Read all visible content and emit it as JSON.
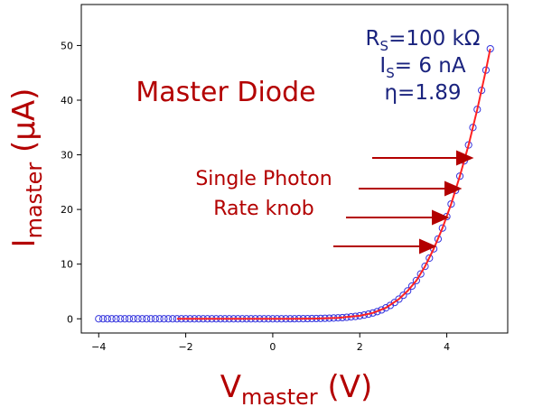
{
  "chart_data": {
    "type": "scatter",
    "xlabel": {
      "main": "V",
      "sub": "master",
      "unit": " (V)"
    },
    "ylabel": {
      "main": "I",
      "sub": "master",
      "unit": " (μA)"
    },
    "xlim": [
      -4.4,
      5.4
    ],
    "ylim": [
      -2.6,
      57.5
    ],
    "xticks": [
      -4,
      -2,
      0,
      2,
      4
    ],
    "yticks": [
      0,
      10,
      20,
      30,
      40,
      50
    ],
    "xtick_labels": [
      "−4",
      "−2",
      "0",
      "2",
      "4"
    ],
    "ytick_labels": [
      "0",
      "10",
      "20",
      "30",
      "40",
      "50"
    ],
    "grid": false,
    "legend": "none",
    "colors": {
      "markers": "#3333dd",
      "fit": "#ff2222",
      "annotation": "#b30000",
      "params": "#1a237e"
    },
    "series": [
      {
        "kind": "markers",
        "x": [
          -4.0,
          -3.9,
          -3.8,
          -3.7,
          -3.6,
          -3.5,
          -3.4,
          -3.3,
          -3.2,
          -3.1,
          -3.0,
          -2.9,
          -2.8,
          -2.7,
          -2.6,
          -2.5,
          -2.4,
          -2.3,
          -2.2,
          -2.1,
          -2.0,
          -1.9,
          -1.8,
          -1.7,
          -1.6,
          -1.5,
          -1.4,
          -1.3,
          -1.2,
          -1.1,
          -1.0,
          -0.9,
          -0.8,
          -0.7,
          -0.6,
          -0.5,
          -0.4,
          -0.3,
          -0.2,
          -0.1,
          0.0,
          0.1,
          0.2,
          0.3,
          0.4,
          0.5,
          0.6,
          0.7,
          0.8,
          0.9,
          1.0,
          1.1,
          1.2,
          1.3,
          1.4,
          1.5,
          1.6,
          1.7,
          1.8,
          1.9,
          2.0,
          2.1,
          2.2,
          2.3,
          2.4,
          2.5,
          2.6,
          2.7,
          2.8,
          2.9,
          3.0,
          3.1,
          3.2,
          3.3,
          3.4,
          3.5,
          3.6,
          3.7,
          3.8,
          3.9,
          4.0,
          4.1,
          4.2,
          4.3,
          4.4,
          4.5,
          4.6,
          4.7,
          4.8,
          4.9,
          5.0
        ],
        "y": [
          0,
          0,
          0,
          0,
          0,
          0,
          0,
          0,
          0,
          0,
          0,
          0,
          0,
          0,
          0,
          0,
          0,
          0,
          0,
          0,
          0,
          0,
          0,
          0,
          0,
          0,
          0,
          0,
          0,
          0,
          0,
          0,
          0,
          0,
          0,
          0,
          0,
          0,
          0,
          0,
          0,
          0,
          0,
          0,
          0.01,
          0.01,
          0.02,
          0.02,
          0.03,
          0.04,
          0.05,
          0.07,
          0.09,
          0.11,
          0.14,
          0.18,
          0.22,
          0.28,
          0.35,
          0.44,
          0.55,
          0.68,
          0.85,
          1.06,
          1.31,
          1.62,
          2.0,
          2.45,
          2.98,
          3.6,
          4.3,
          5.1,
          6.0,
          7.0,
          8.2,
          9.6,
          11.1,
          12.8,
          14.6,
          16.6,
          18.7,
          21.0,
          23.5,
          26.1,
          28.9,
          31.8,
          35.0,
          38.3,
          41.8,
          45.5,
          49.4
        ]
      },
      {
        "kind": "fit-line",
        "x": [
          -2.2,
          -1.0,
          0.0,
          0.5,
          1.0,
          1.5,
          2.0,
          2.3,
          2.6,
          2.9,
          3.1,
          3.3,
          3.5,
          3.7,
          3.9,
          4.1,
          4.3,
          4.5,
          4.7,
          4.9,
          5.0
        ],
        "y": [
          0,
          0,
          0,
          0.01,
          0.05,
          0.18,
          0.55,
          1.06,
          2.0,
          3.6,
          5.1,
          7.0,
          9.6,
          12.8,
          16.6,
          21.0,
          26.1,
          31.8,
          38.3,
          45.5,
          49.4
        ]
      }
    ],
    "annotations": {
      "title": "Master Diode",
      "knob_line1": "Single Photon",
      "knob_line2": "Rate knob",
      "params": [
        {
          "main": "R",
          "sub": "S",
          "rest": "=100 kΩ"
        },
        {
          "main": "I",
          "sub": "S",
          "rest": "= 6 nA"
        },
        {
          "main": "η=1.89",
          "sub": "",
          "rest": ""
        }
      ]
    }
  }
}
